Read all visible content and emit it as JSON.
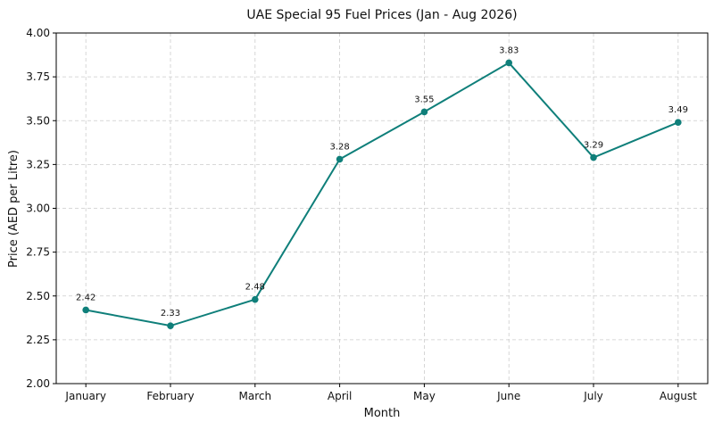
{
  "chart_data": {
    "type": "line",
    "title": "UAE Special 95 Fuel Prices (Jan - Aug 2026)",
    "xlabel": "Month",
    "ylabel": "Price (AED per Litre)",
    "categories": [
      "January",
      "February",
      "March",
      "April",
      "May",
      "June",
      "July",
      "August"
    ],
    "series": [
      {
        "values": [
          2.42,
          2.33,
          2.48,
          3.28,
          3.55,
          3.83,
          3.29,
          3.49
        ],
        "data_labels": [
          "2.42",
          "2.33",
          "2.48",
          "3.28",
          "3.55",
          "3.83",
          "3.29",
          "3.49"
        ],
        "color": "#0f7f7a"
      }
    ],
    "ylim": [
      2.0,
      4.0
    ],
    "yticks": [
      "2.00",
      "2.25",
      "2.50",
      "2.75",
      "3.00",
      "3.25",
      "3.50",
      "3.75",
      "4.00"
    ],
    "grid": true
  }
}
